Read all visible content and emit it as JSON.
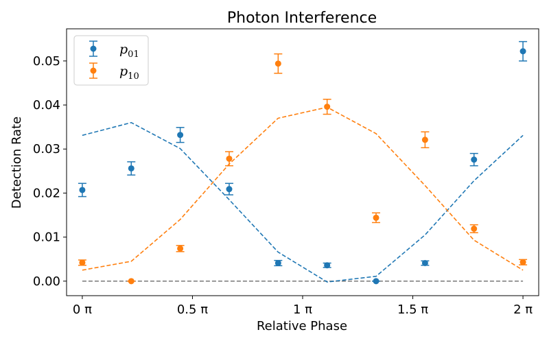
{
  "chart_data": {
    "type": "scatter",
    "title": "Photon Interference",
    "xlabel": "Relative Phase",
    "ylabel": "Detection Rate",
    "xlim": [
      -0.0714,
      2.0714
    ],
    "ylim": [
      -0.0033,
      0.0573
    ],
    "x_ticks": [
      0,
      0.5,
      1,
      1.5,
      2
    ],
    "x_tick_labels": [
      "0 π",
      "0.5 π",
      "1 π",
      "1.5 π",
      "2 π"
    ],
    "y_ticks": [
      0,
      0.01,
      0.02,
      0.03,
      0.04,
      0.05
    ],
    "y_tick_labels": [
      "0.00",
      "0.01",
      "0.02",
      "0.03",
      "0.04",
      "0.05"
    ],
    "legend_position": "top-left",
    "grid": false,
    "x": [
      0,
      0.2222,
      0.4444,
      0.6667,
      0.8889,
      1.1111,
      1.3333,
      1.5556,
      1.7778,
      2.0
    ],
    "series": [
      {
        "name": "p01",
        "name_base": "p",
        "name_sub": "01",
        "color": "#1f77b4",
        "values": [
          0.0207,
          0.0256,
          0.0332,
          0.0209,
          0.0041,
          0.0036,
          0.0,
          0.0041,
          0.0276,
          0.0522
        ],
        "errors": [
          0.0015,
          0.0015,
          0.0017,
          0.0013,
          0.0006,
          0.0005,
          0.0,
          0.0005,
          0.0014,
          0.0022
        ],
        "fit": [
          0.0331,
          0.036,
          0.0301,
          0.0185,
          0.0066,
          -0.0002,
          0.0011,
          0.0105,
          0.0228,
          0.0331
        ]
      },
      {
        "name": "p10",
        "name_base": "p",
        "name_sub": "10",
        "color": "#ff7f0e",
        "values": [
          0.0042,
          0.0,
          0.0074,
          0.0278,
          0.0494,
          0.0396,
          0.0144,
          0.0321,
          0.0119,
          0.0043
        ],
        "errors": [
          0.0006,
          0.0,
          0.0007,
          0.0016,
          0.0022,
          0.0017,
          0.0011,
          0.0018,
          0.0009,
          0.0006
        ],
        "fit": [
          0.0025,
          0.0045,
          0.014,
          0.0266,
          0.037,
          0.0395,
          0.0335,
          0.0217,
          0.0093,
          0.0025
        ]
      }
    ],
    "baseline": {
      "y": 0,
      "color": "#808080"
    }
  }
}
